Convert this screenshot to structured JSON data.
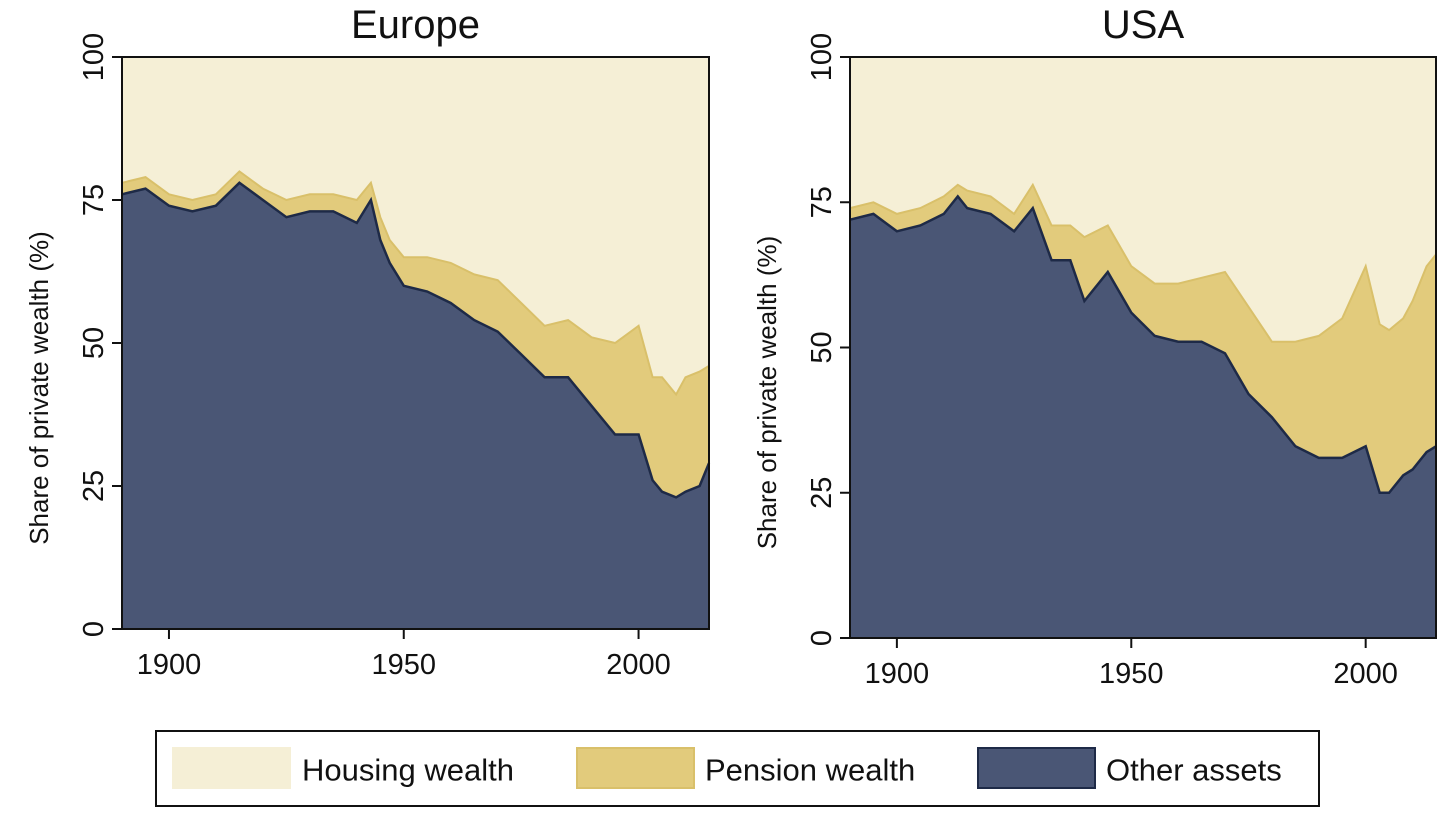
{
  "colors": {
    "housing": "#f5efd6",
    "pension": "#e2cb7c",
    "pension_edge": "#d9c06a",
    "other": "#4a5675",
    "other_edge": "#1e2a47",
    "axis": "#111111"
  },
  "legend": [
    {
      "label": "Housing wealth",
      "color_key": "housing"
    },
    {
      "label": "Pension wealth",
      "color_key": "pension"
    },
    {
      "label": "Other assets",
      "color_key": "other"
    }
  ],
  "chart_data": [
    {
      "type": "area",
      "stacked": true,
      "title": "Europe",
      "xlabel": "",
      "ylabel": "Share of private wealth (%)",
      "xlim": [
        1890,
        2015
      ],
      "ylim": [
        0,
        100
      ],
      "xticks": [
        1900,
        1950,
        2000
      ],
      "yticks": [
        0,
        25,
        50,
        75,
        100
      ],
      "grid": false,
      "legend_position": "bottom",
      "x": [
        1890,
        1895,
        1900,
        1905,
        1910,
        1915,
        1920,
        1925,
        1930,
        1935,
        1940,
        1943,
        1945,
        1947,
        1950,
        1955,
        1960,
        1965,
        1970,
        1975,
        1980,
        1985,
        1990,
        1995,
        2000,
        2003,
        2005,
        2008,
        2010,
        2013,
        2015
      ],
      "series": [
        {
          "name": "Other assets",
          "values": [
            76,
            77,
            74,
            73,
            74,
            78,
            75,
            72,
            73,
            73,
            71,
            75,
            68,
            64,
            60,
            59,
            57,
            54,
            52,
            48,
            44,
            44,
            39,
            34,
            34,
            26,
            24,
            23,
            24,
            25,
            29
          ]
        },
        {
          "name": "Pension wealth",
          "values": [
            2,
            2,
            2,
            2,
            2,
            2,
            2,
            3,
            3,
            3,
            4,
            3,
            4,
            4,
            5,
            6,
            7,
            8,
            9,
            9,
            9,
            10,
            12,
            16,
            19,
            18,
            20,
            18,
            20,
            20,
            17
          ]
        },
        {
          "name": "Housing wealth",
          "values": [
            22,
            21,
            24,
            25,
            24,
            20,
            23,
            25,
            24,
            24,
            25,
            22,
            28,
            32,
            35,
            35,
            36,
            38,
            39,
            43,
            47,
            46,
            49,
            50,
            47,
            56,
            56,
            59,
            56,
            55,
            54
          ]
        }
      ]
    },
    {
      "type": "area",
      "stacked": true,
      "title": "USA",
      "xlabel": "",
      "ylabel": "Share of private wealth (%)",
      "xlim": [
        1890,
        2015
      ],
      "ylim": [
        0,
        100
      ],
      "xticks": [
        1900,
        1950,
        2000
      ],
      "yticks": [
        0,
        25,
        50,
        75,
        100
      ],
      "grid": false,
      "legend_position": "bottom",
      "x": [
        1890,
        1895,
        1900,
        1905,
        1910,
        1913,
        1915,
        1920,
        1925,
        1929,
        1933,
        1937,
        1940,
        1945,
        1950,
        1955,
        1960,
        1965,
        1970,
        1975,
        1980,
        1985,
        1990,
        1995,
        2000,
        2003,
        2005,
        2008,
        2010,
        2013,
        2015
      ],
      "series": [
        {
          "name": "Other assets",
          "values": [
            72,
            73,
            70,
            71,
            73,
            76,
            74,
            73,
            70,
            74,
            65,
            65,
            58,
            63,
            56,
            52,
            51,
            51,
            49,
            42,
            38,
            33,
            31,
            31,
            33,
            25,
            25,
            28,
            29,
            32,
            33
          ]
        },
        {
          "name": "Pension wealth",
          "values": [
            2,
            2,
            3,
            3,
            3,
            2,
            3,
            3,
            3,
            4,
            6,
            6,
            11,
            8,
            8,
            9,
            10,
            11,
            14,
            15,
            13,
            18,
            21,
            24,
            31,
            29,
            28,
            27,
            29,
            32,
            33
          ]
        },
        {
          "name": "Housing wealth",
          "values": [
            26,
            25,
            27,
            26,
            24,
            22,
            23,
            24,
            27,
            22,
            29,
            29,
            31,
            29,
            36,
            39,
            39,
            38,
            37,
            43,
            49,
            49,
            48,
            45,
            36,
            46,
            47,
            45,
            42,
            36,
            34
          ]
        }
      ]
    }
  ]
}
